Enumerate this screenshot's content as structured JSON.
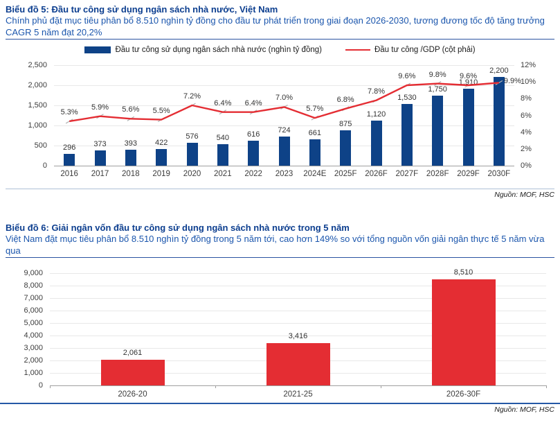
{
  "report": {
    "sections": [
      {
        "title": "Biểu đồ 5: Đầu tư công sử dụng ngân sách nhà nước, Việt Nam",
        "subtitle": "Chính phủ đặt mục tiêu phân bổ 8.510 nghìn tỷ đồng cho đầu tư phát triển trong giai đoạn 2026-2030, tương đương tốc độ tăng trưởng CAGR 5 năm đạt 20,2%",
        "source": "Nguồn: MOF, HSC"
      },
      {
        "title": "Biểu đồ 6: Giải ngân vốn đầu tư công sử dụng ngân sách nhà nước trong 5 năm",
        "subtitle": "Việt Nam đặt mục tiêu phân bổ 8.510 nghìn tỷ đồng trong 5 năm tới, cao hơn 149% so với tổng nguồn vốn giải ngân thực tế 5 năm vừa qua",
        "source": "Nguồn: MOF, HSC"
      }
    ]
  },
  "colors": {
    "title_blue": "#0c3e8f",
    "subtitle_blue": "#1b56ad",
    "bar_navy": "#0e4287",
    "line_red": "#e42d33",
    "bar_red": "#e42d33"
  },
  "chart_data": [
    {
      "type": "bar",
      "title": "Biểu đồ 5: Đầu tư công sử dụng ngân sách nhà nước, Việt Nam",
      "categories": [
        "2016",
        "2017",
        "2018",
        "2019",
        "2020",
        "2021",
        "2022",
        "2023",
        "2024E",
        "2025F",
        "2026F",
        "2027F",
        "2028F",
        "2029F",
        "2030F"
      ],
      "series": [
        {
          "name": "Đầu tư công sử dụng ngân sách nhà nước (nghìn tỷ đồng)",
          "type": "bar",
          "axis": "left",
          "color": "#0e4287",
          "values": [
            296,
            373,
            393,
            422,
            576,
            540,
            616,
            724,
            661,
            875,
            1120,
            1530,
            1750,
            1910,
            2200
          ],
          "labels": [
            "296",
            "373",
            "393",
            "422",
            "576",
            "540",
            "616",
            "724",
            "661",
            "875",
            "1,120",
            "1,530",
            "1,750",
            "1,910",
            "2,200"
          ]
        },
        {
          "name": "Đầu tư công /GDP (cột phải)",
          "type": "line",
          "axis": "right",
          "color": "#e42d33",
          "values": [
            5.3,
            5.9,
            5.6,
            5.5,
            7.2,
            6.4,
            6.4,
            7.0,
            5.7,
            6.8,
            7.8,
            9.6,
            9.8,
            9.6,
            9.9
          ],
          "labels": [
            "5.3%",
            "5.9%",
            "5.6%",
            "5.5%",
            "7.2%",
            "6.4%",
            "6.4%",
            "7.0%",
            "5.7%",
            "6.8%",
            "7.8%",
            "9.6%",
            "9.8%",
            "9.6%",
            "9.9%"
          ]
        }
      ],
      "left_axis": {
        "min": 0,
        "max": 2500,
        "step": 500,
        "ticks": [
          "0",
          "500",
          "1,000",
          "1,500",
          "2,000",
          "2,500"
        ]
      },
      "right_axis": {
        "min": 0,
        "max": 12,
        "step": 2,
        "ticks": [
          "0%",
          "2%",
          "4%",
          "6%",
          "8%",
          "10%",
          "12%"
        ]
      },
      "grid": true,
      "legend_position": "top"
    },
    {
      "type": "bar",
      "title": "Biểu đồ 6: Giải ngân vốn đầu tư công sử dụng ngân sách nhà nước trong 5 năm",
      "categories": [
        "2026-20",
        "2021-25",
        "2026-30F"
      ],
      "values": [
        2061,
        3416,
        8510
      ],
      "value_labels": [
        "2,061",
        "3,416",
        "8,510"
      ],
      "bar_color": "#e42d33",
      "y_axis": {
        "min": 0,
        "max": 9000,
        "step": 1000,
        "ticks": [
          "0",
          "1,000",
          "2,000",
          "3,000",
          "4,000",
          "5,000",
          "6,000",
          "7,000",
          "8,000",
          "9,000"
        ]
      },
      "grid": true,
      "legend_position": "none"
    }
  ]
}
